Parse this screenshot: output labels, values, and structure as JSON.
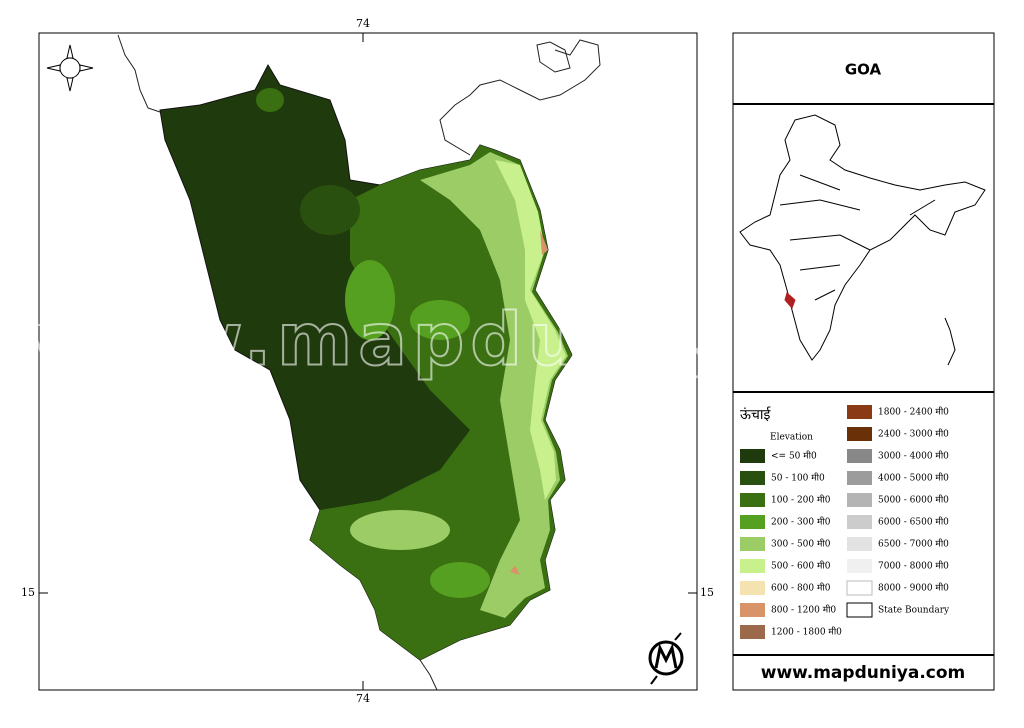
{
  "map": {
    "longitude_label": "74",
    "latitude_label": "15",
    "watermark": "www.mapduniya.com"
  },
  "title": "GOA",
  "legend": {
    "title": "ऊंचाई",
    "subtitle": "Elevation",
    "items": [
      {
        "label": "<= 50 मी0",
        "color": "#1f3a0c"
      },
      {
        "label": "50 - 100 मी0",
        "color": "#2a5010"
      },
      {
        "label": "100 - 200 मी0",
        "color": "#3a7012"
      },
      {
        "label": "200 - 300 मी0",
        "color": "#55a020"
      },
      {
        "label": "300 - 500 मी0",
        "color": "#9ccc66"
      },
      {
        "label": "500 - 600 मी0",
        "color": "#c8f08c"
      },
      {
        "label": "600 - 800 मी0",
        "color": "#f4e2b0"
      },
      {
        "label": "800 - 1200 मी0",
        "color": "#d89468"
      },
      {
        "label": "1200 - 1800 मी0",
        "color": "#9c6a4a"
      },
      {
        "label": "1800 - 2400 मी0",
        "color": "#8a3a14"
      },
      {
        "label": "2400 - 3000 मी0",
        "color": "#6a3008"
      },
      {
        "label": "3000 - 4000 मी0",
        "color": "#888888"
      },
      {
        "label": "4000 - 5000 मी0",
        "color": "#9c9c9c"
      },
      {
        "label": "5000 - 6000 मी0",
        "color": "#b4b4b4"
      },
      {
        "label": "6000 - 6500 मी0",
        "color": "#cccccc"
      },
      {
        "label": "6500 - 7000 मी0",
        "color": "#e2e2e2"
      },
      {
        "label": "7000 - 8000 मी0",
        "color": "#f0f0f0"
      },
      {
        "label": "8000 - 9000 मी0",
        "color": "#ffffff"
      },
      {
        "label": "State Boundary",
        "color": "#ffffff"
      }
    ]
  },
  "footer": {
    "url": "www.mapduniya.com"
  }
}
